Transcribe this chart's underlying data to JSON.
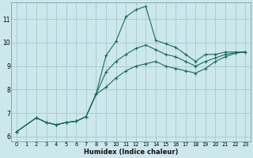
{
  "bg_color": "#cce8ec",
  "grid_color": "#aacdd4",
  "line_color": "#1a6b5a",
  "xlabel": "Humidex (Indice chaleur)",
  "xlim": [
    -0.5,
    23.5
  ],
  "ylim": [
    5.8,
    11.7
  ],
  "xticks": [
    0,
    1,
    2,
    3,
    4,
    5,
    6,
    7,
    8,
    9,
    10,
    11,
    12,
    13,
    14,
    15,
    16,
    17,
    18,
    19,
    20,
    21,
    22,
    23
  ],
  "yticks": [
    6,
    7,
    8,
    9,
    10,
    11
  ],
  "upper_x": [
    0,
    2,
    3,
    4,
    5,
    6,
    7,
    8,
    9,
    10,
    11,
    12,
    13,
    14,
    15,
    16,
    17,
    18,
    19,
    20,
    21,
    22,
    23
  ],
  "upper_y": [
    6.2,
    6.8,
    6.6,
    6.5,
    6.6,
    6.65,
    6.85,
    7.8,
    9.45,
    10.05,
    11.1,
    11.4,
    11.55,
    10.1,
    9.95,
    9.8,
    9.5,
    9.2,
    9.5,
    9.5,
    9.6,
    9.6,
    9.6
  ],
  "lower_x": [
    0,
    2,
    3,
    4,
    5,
    6,
    7,
    8,
    9,
    10,
    11,
    12,
    13,
    14,
    15,
    16,
    17,
    18,
    19,
    20,
    21,
    22,
    23
  ],
  "lower_y": [
    6.2,
    6.8,
    6.6,
    6.5,
    6.6,
    6.65,
    6.85,
    7.8,
    8.1,
    8.5,
    8.8,
    9.0,
    9.1,
    9.2,
    9.0,
    8.9,
    8.8,
    8.7,
    8.9,
    9.2,
    9.4,
    9.55,
    9.6
  ],
  "mid_x": [
    0,
    2,
    3,
    4,
    5,
    6,
    7,
    8,
    9,
    10,
    11,
    12,
    13,
    14,
    15,
    16,
    17,
    18,
    19,
    20,
    21,
    22,
    23
  ],
  "mid_y": [
    6.2,
    6.8,
    6.6,
    6.5,
    6.6,
    6.65,
    6.85,
    7.8,
    8.75,
    9.2,
    9.5,
    9.75,
    9.9,
    9.7,
    9.5,
    9.4,
    9.2,
    9.0,
    9.2,
    9.35,
    9.5,
    9.57,
    9.6
  ]
}
